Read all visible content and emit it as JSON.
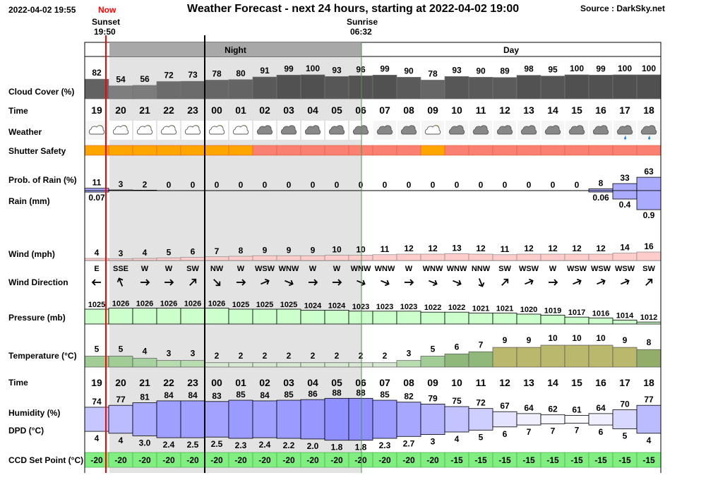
{
  "header": {
    "timestamp": "2022-04-02 19:55",
    "now_label": "Now",
    "title": "Weather Forecast - next 24 hours, starting at 2022-04-02 19:00",
    "source": "Source : DarkSky.net",
    "sunset_label": "Sunset",
    "sunset_time": "19:50",
    "sunrise_label": "Sunrise",
    "sunrise_time": "06:32",
    "night_label": "Night",
    "day_label": "Day"
  },
  "row_labels": {
    "cloud": "Cloud Cover (%)",
    "time": "Time",
    "weather": "Weather",
    "shutter": "Shutter Safety",
    "rain_prob": "Prob. of Rain (%)",
    "rain_mm": "Rain (mm)",
    "wind": "Wind (mph)",
    "wind_dir": "Wind Direction",
    "pressure": "Pressure (mb)",
    "temperature": "Temperature (°C)",
    "time2": "Time",
    "humidity": "Humidity (%)",
    "dpd": "DPD (°C)",
    "ccd": "CCD Set Point (°C)"
  },
  "colors": {
    "night_shade": "#e3e3e3",
    "shutter_safe": "#ffa500",
    "shutter_unsafe": "#fa8072",
    "rain_bar": "#aaaaff",
    "wind_bar": "#ffcccc",
    "pressure_bar": "#ccffcc",
    "ccd_bar": "#80ee80",
    "now_line": "#ff0000"
  },
  "chart_data": {
    "type": "table",
    "hours": [
      "19",
      "20",
      "21",
      "22",
      "23",
      "00",
      "01",
      "02",
      "03",
      "04",
      "05",
      "06",
      "07",
      "08",
      "09",
      "10",
      "11",
      "12",
      "13",
      "14",
      "15",
      "16",
      "17",
      "18"
    ],
    "cloud_cover": [
      82,
      54,
      56,
      72,
      73,
      78,
      80,
      91,
      99,
      100,
      93,
      96,
      99,
      90,
      78,
      93,
      90,
      89,
      98,
      95,
      100,
      99,
      100,
      100
    ],
    "weather_icons": [
      "partly-cloudy-night",
      "partly-cloudy-night",
      "partly-cloudy-night",
      "partly-cloudy-night",
      "partly-cloudy-night",
      "partly-cloudy-night",
      "partly-cloudy-night",
      "cloudy",
      "cloudy",
      "cloudy",
      "cloudy",
      "cloudy",
      "cloudy",
      "cloudy",
      "partly-cloudy-day",
      "cloudy",
      "cloudy",
      "cloudy",
      "cloudy",
      "cloudy",
      "cloudy",
      "cloudy",
      "rain",
      "rain"
    ],
    "shutter_safety": [
      "safe",
      "safe",
      "safe",
      "safe",
      "safe",
      "safe",
      "safe",
      "unsafe",
      "unsafe",
      "unsafe",
      "unsafe",
      "unsafe",
      "unsafe",
      "unsafe",
      "safe",
      "unsafe",
      "unsafe",
      "unsafe",
      "unsafe",
      "unsafe",
      "unsafe",
      "unsafe",
      "unsafe",
      "unsafe"
    ],
    "rain_probability": [
      11,
      3,
      2,
      0,
      0,
      0,
      0,
      0,
      0,
      0,
      0,
      0,
      0,
      0,
      0,
      0,
      0,
      0,
      0,
      0,
      0,
      8,
      33,
      63
    ],
    "rain_mm": [
      0.07,
      null,
      null,
      null,
      null,
      null,
      null,
      null,
      null,
      null,
      null,
      null,
      null,
      null,
      null,
      null,
      null,
      null,
      null,
      null,
      null,
      0.06,
      0.4,
      0.9
    ],
    "wind_speed": [
      4,
      3,
      4,
      5,
      6,
      7,
      8,
      9,
      9,
      9,
      10,
      10,
      11,
      12,
      12,
      13,
      12,
      11,
      12,
      12,
      12,
      12,
      14,
      16
    ],
    "wind_direction": [
      "E",
      "SSE",
      "W",
      "W",
      "SW",
      "NW",
      "W",
      "WSW",
      "WNW",
      "W",
      "W",
      "WNW",
      "WNW",
      "W",
      "WNW",
      "WNW",
      "NNW",
      "SW",
      "WSW",
      "W",
      "WSW",
      "WSW",
      "WSW",
      "SW"
    ],
    "pressure": [
      1025,
      1026,
      1026,
      1026,
      1026,
      1026,
      1025,
      1025,
      1025,
      1024,
      1024,
      1023,
      1023,
      1023,
      1022,
      1022,
      1021,
      1021,
      1020,
      1019,
      1017,
      1016,
      1014,
      1012
    ],
    "temperature": [
      5,
      5,
      4,
      3,
      3,
      2,
      2,
      2,
      2,
      2,
      2,
      2,
      2,
      3,
      5,
      6,
      7,
      9,
      9,
      10,
      10,
      10,
      9,
      8
    ],
    "humidity": [
      74,
      77,
      81,
      84,
      84,
      83,
      85,
      84,
      85,
      86,
      88,
      88,
      85,
      82,
      79,
      75,
      72,
      67,
      64,
      62,
      61,
      64,
      70,
      77
    ],
    "dpd": [
      "4",
      "4",
      "3.0",
      "2.4",
      "2.5",
      "2.5",
      "2.3",
      "2.4",
      "2.2",
      "2.0",
      "1.8",
      "1.8",
      "2.3",
      "2.7",
      "3",
      "4",
      "5",
      "6",
      "7",
      "7",
      "7",
      "6",
      "5",
      "4"
    ],
    "ccd_set_point": [
      -20,
      -20,
      -20,
      -20,
      -20,
      -20,
      -20,
      -20,
      -20,
      -20,
      -20,
      -20,
      -20,
      -20,
      -20,
      -15,
      -15,
      -15,
      -15,
      -15,
      -15,
      -15,
      -15,
      -15
    ]
  }
}
